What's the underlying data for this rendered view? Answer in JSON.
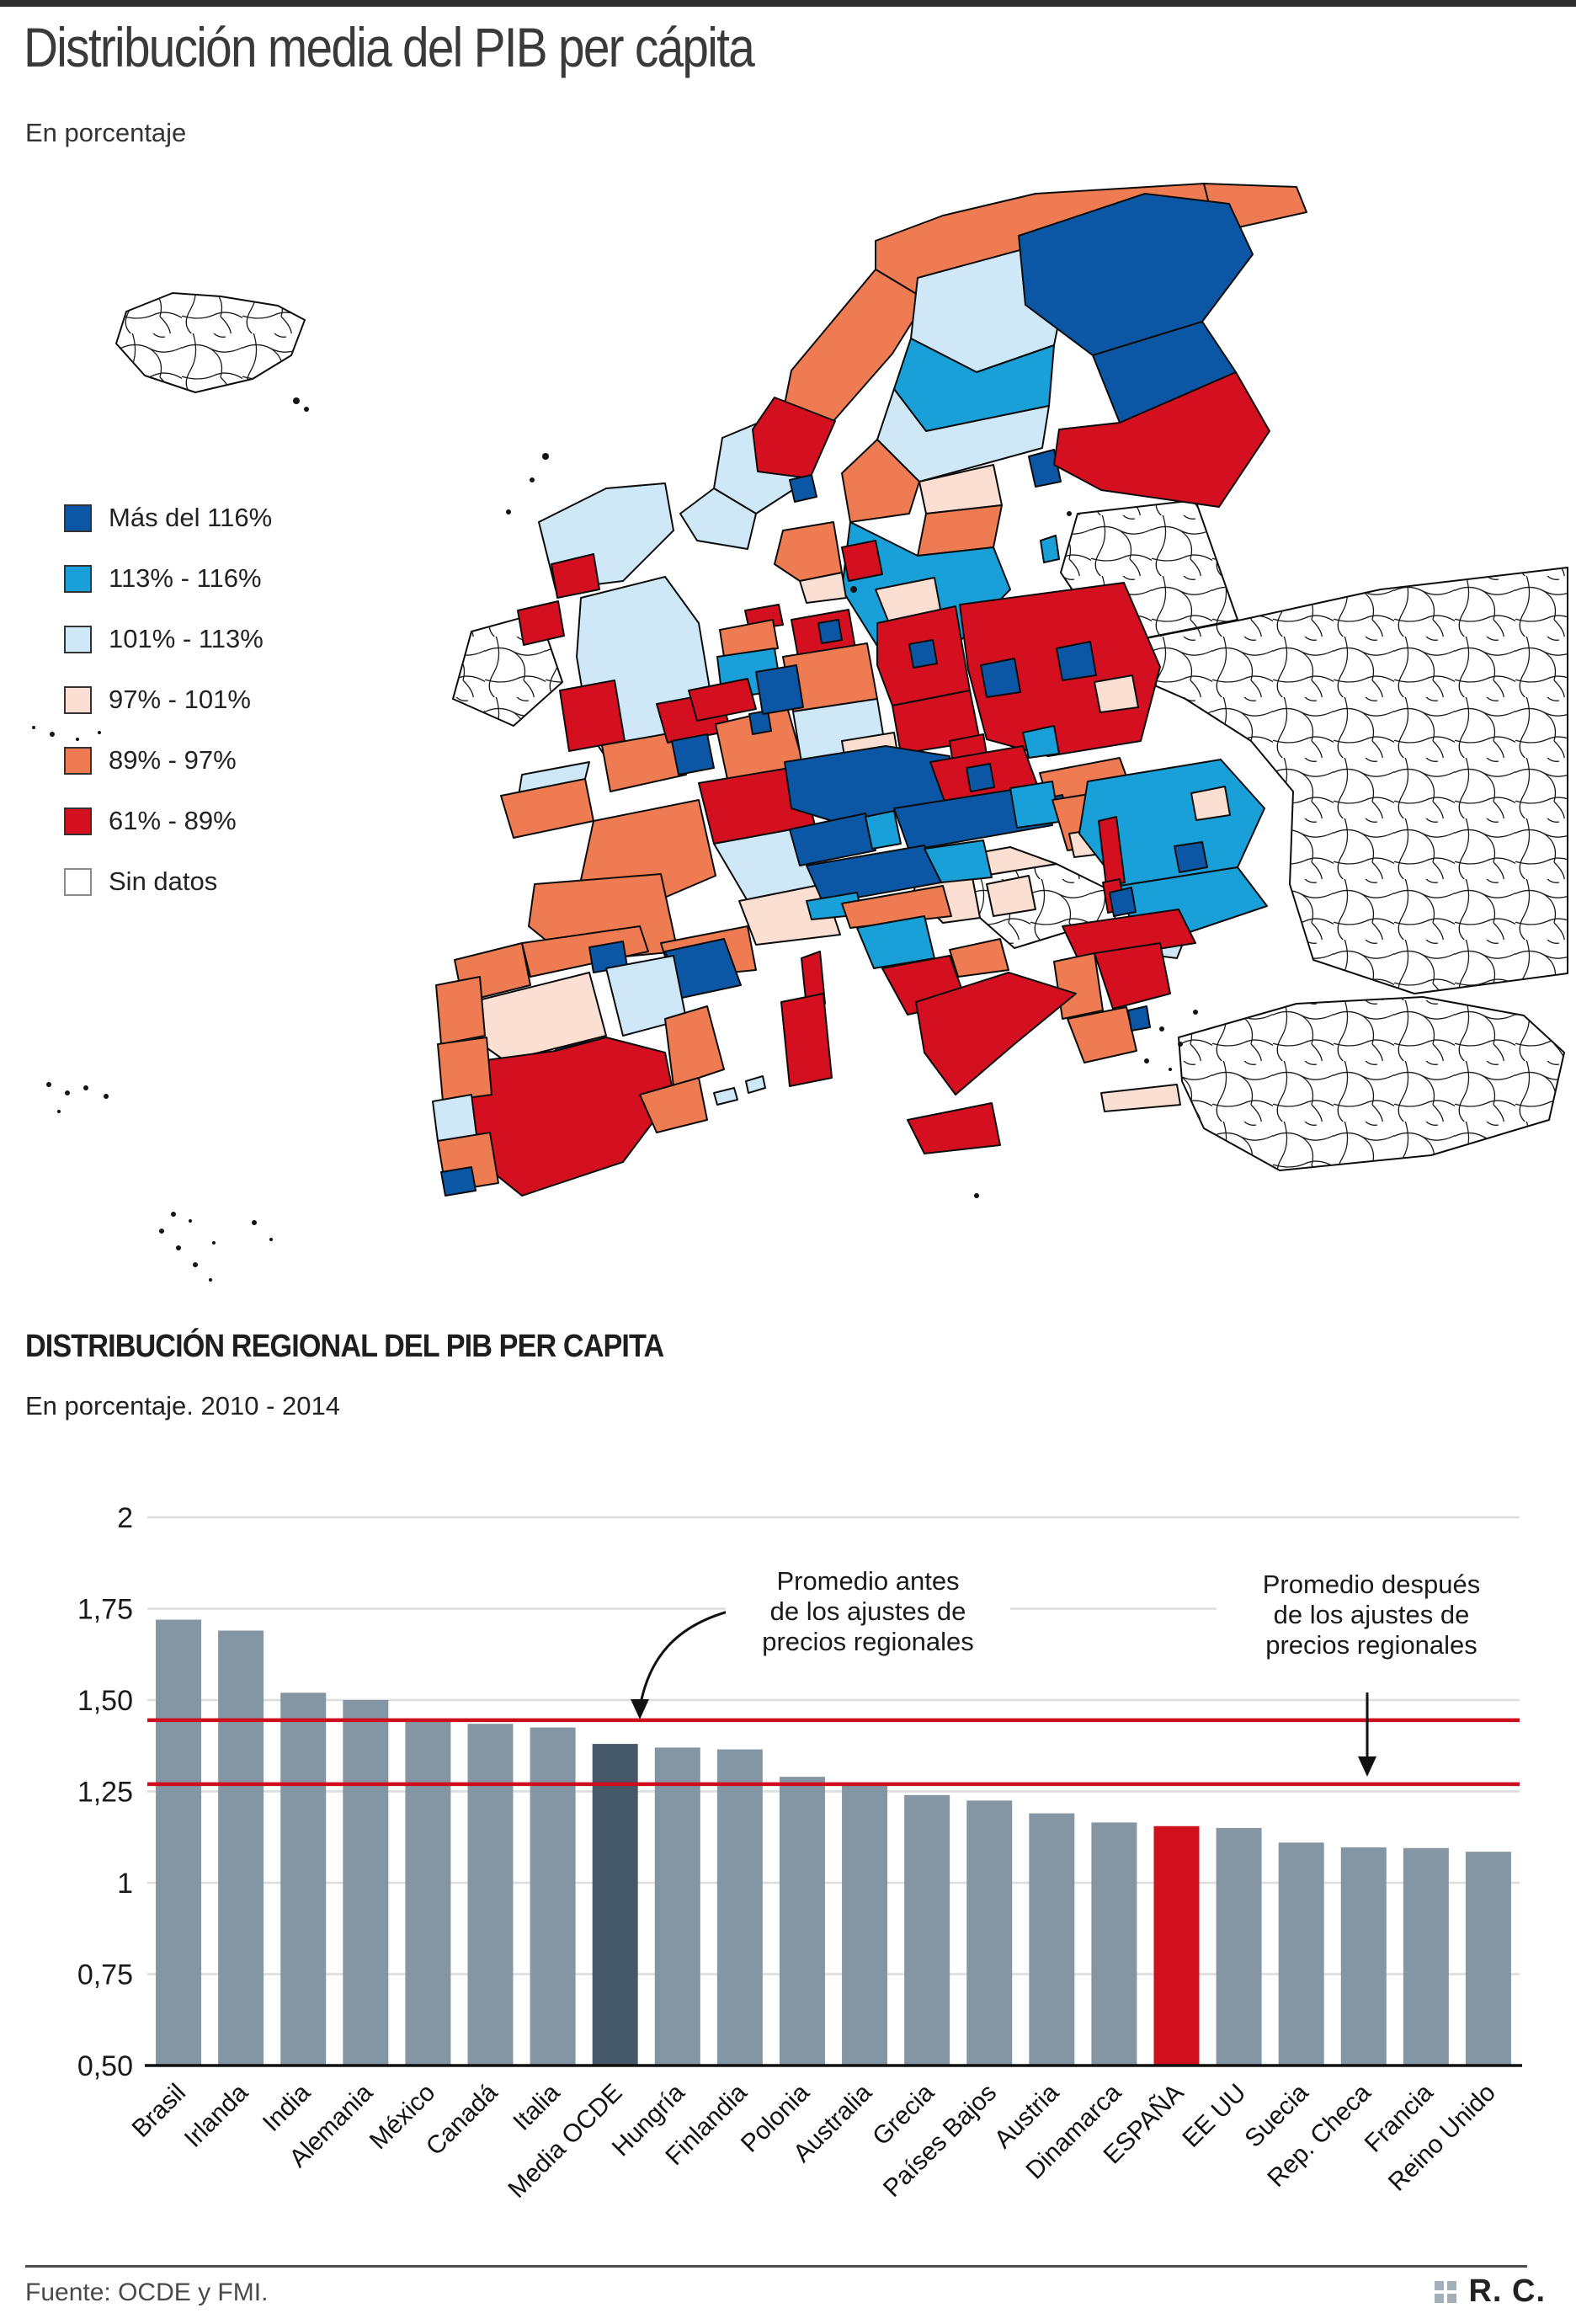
{
  "page": {
    "title": "Distribución media del PIB per cápita",
    "subtitle": "En porcentaje"
  },
  "map": {
    "legend": [
      {
        "key": "c1",
        "label": "Más del 116%",
        "color": "#0b57a6"
      },
      {
        "key": "c2",
        "label": "113% - 116%",
        "color": "#19a0d9"
      },
      {
        "key": "c3",
        "label": "101% - 113%",
        "color": "#cfe8f8"
      },
      {
        "key": "c4",
        "label": "97% - 101%",
        "color": "#fbdfd2"
      },
      {
        "key": "c5",
        "label": "89% - 97%",
        "color": "#ee7b52"
      },
      {
        "key": "c6",
        "label": "61% - 89%",
        "color": "#d40f1f"
      },
      {
        "key": "nodata",
        "label": "Sin datos",
        "color": "#ffffff"
      }
    ],
    "regions": [
      {
        "id": "iceland",
        "category": "nodata"
      },
      {
        "id": "ireland",
        "category": "nodata"
      },
      {
        "id": "baltics",
        "category": "nodata"
      },
      {
        "id": "east",
        "category": "nodata"
      },
      {
        "id": "turkey",
        "category": "nodata"
      },
      {
        "id": "balkans",
        "category": "nodata"
      },
      {
        "id": "nor_north",
        "category": "c5"
      },
      {
        "id": "kola",
        "category": "c5"
      },
      {
        "id": "nor_mid",
        "category": "c5"
      },
      {
        "id": "nor_west",
        "category": "c3"
      },
      {
        "id": "nor_red",
        "category": "c6"
      },
      {
        "id": "nor_south",
        "category": "c3"
      },
      {
        "id": "oslo",
        "category": "c1"
      },
      {
        "id": "swe_north",
        "category": "c3"
      },
      {
        "id": "swe_band",
        "category": "c2"
      },
      {
        "id": "swe_mid",
        "category": "c3"
      },
      {
        "id": "swe_or1",
        "category": "c5"
      },
      {
        "id": "swe_peach1",
        "category": "c4"
      },
      {
        "id": "swe_or2",
        "category": "c5"
      },
      {
        "id": "swe_south",
        "category": "c2"
      },
      {
        "id": "swe_peach2",
        "category": "c4"
      },
      {
        "id": "swe_tip",
        "category": "c4"
      },
      {
        "id": "stockholm",
        "category": "c1"
      },
      {
        "id": "gotland",
        "category": "c2"
      },
      {
        "id": "fin_north",
        "category": "c1"
      },
      {
        "id": "fin_mid",
        "category": "c1"
      },
      {
        "id": "fin_south",
        "category": "c6"
      },
      {
        "id": "den_jut",
        "category": "c5"
      },
      {
        "id": "den_red",
        "category": "c6"
      },
      {
        "id": "den_peach",
        "category": "c4"
      },
      {
        "id": "scotland",
        "category": "c3"
      },
      {
        "id": "scot_red",
        "category": "c6"
      },
      {
        "id": "england",
        "category": "c3"
      },
      {
        "id": "wales",
        "category": "c6"
      },
      {
        "id": "cornwall",
        "category": "c3"
      },
      {
        "id": "ni",
        "category": "c6"
      },
      {
        "id": "brittany",
        "category": "c5"
      },
      {
        "id": "normandy",
        "category": "c5"
      },
      {
        "id": "nord",
        "category": "c6"
      },
      {
        "id": "fr_east",
        "category": "c5"
      },
      {
        "id": "burgundy",
        "category": "c6"
      },
      {
        "id": "fr_center",
        "category": "c5"
      },
      {
        "id": "rhone",
        "category": "c3"
      },
      {
        "id": "provence",
        "category": "c4"
      },
      {
        "id": "fr_sw",
        "category": "c5"
      },
      {
        "id": "languedoc",
        "category": "c5"
      },
      {
        "id": "paris",
        "category": "c1"
      },
      {
        "id": "corsica",
        "category": "c6"
      },
      {
        "id": "nl_red",
        "category": "c6"
      },
      {
        "id": "nl_orange",
        "category": "c5"
      },
      {
        "id": "nl_cyan",
        "category": "c2"
      },
      {
        "id": "belgium",
        "category": "c6"
      },
      {
        "id": "lux",
        "category": "c1"
      },
      {
        "id": "ger_nw_red",
        "category": "c6"
      },
      {
        "id": "hamburg",
        "category": "c1"
      },
      {
        "id": "ger_lowsax",
        "category": "c5"
      },
      {
        "id": "ger_east_red",
        "category": "c6"
      },
      {
        "id": "berlin",
        "category": "c1"
      },
      {
        "id": "ger_center",
        "category": "c3"
      },
      {
        "id": "ger_peach",
        "category": "c4"
      },
      {
        "id": "ger_nrw",
        "category": "c1"
      },
      {
        "id": "ger_east2",
        "category": "c6"
      },
      {
        "id": "ger_south",
        "category": "c1"
      },
      {
        "id": "ger_se",
        "category": "c6"
      },
      {
        "id": "pl_red",
        "category": "c6"
      },
      {
        "id": "warsaw",
        "category": "c1"
      },
      {
        "id": "pl_west",
        "category": "c1"
      },
      {
        "id": "pl_peach",
        "category": "c4"
      },
      {
        "id": "pl_silesia",
        "category": "c2"
      },
      {
        "id": "cz_red",
        "category": "c6"
      },
      {
        "id": "prague",
        "category": "c1"
      },
      {
        "id": "sk_orange",
        "category": "c5"
      },
      {
        "id": "sk_blue",
        "category": "c1"
      },
      {
        "id": "at_dark",
        "category": "c1"
      },
      {
        "id": "at_cyan",
        "category": "c2"
      },
      {
        "id": "ch",
        "category": "c1"
      },
      {
        "id": "ch_e",
        "category": "c2"
      },
      {
        "id": "hu_orange",
        "category": "c5"
      },
      {
        "id": "budapest",
        "category": "c2"
      },
      {
        "id": "hu_red",
        "category": "c6"
      },
      {
        "id": "hu_peach",
        "category": "c4"
      },
      {
        "id": "slovenia",
        "category": "c2"
      },
      {
        "id": "croatia",
        "category": "c4"
      },
      {
        "id": "bosnia_peach",
        "category": "c4"
      },
      {
        "id": "ro_cyan",
        "category": "c2"
      },
      {
        "id": "ro_red",
        "category": "c6"
      },
      {
        "id": "ro_peach",
        "category": "c4"
      },
      {
        "id": "ro_buch",
        "category": "c1"
      },
      {
        "id": "bg_cyan",
        "category": "c2"
      },
      {
        "id": "bg_light",
        "category": "c3"
      },
      {
        "id": "bg_red",
        "category": "c6"
      },
      {
        "id": "sofia",
        "category": "c1"
      },
      {
        "id": "gr_north",
        "category": "c6"
      },
      {
        "id": "gr_epirus",
        "category": "c5"
      },
      {
        "id": "gr_center",
        "category": "c6"
      },
      {
        "id": "gr_pelo",
        "category": "c5"
      },
      {
        "id": "gr_athens",
        "category": "c1"
      },
      {
        "id": "crete",
        "category": "c4"
      },
      {
        "id": "it_north",
        "category": "c1"
      },
      {
        "id": "it_veneto",
        "category": "c2"
      },
      {
        "id": "it_liguria",
        "category": "c2"
      },
      {
        "id": "it_emilia",
        "category": "c5"
      },
      {
        "id": "it_tuscany",
        "category": "c2"
      },
      {
        "id": "it_lazio",
        "category": "c6"
      },
      {
        "id": "it_abruzzo",
        "category": "c5"
      },
      {
        "id": "it_south",
        "category": "c6"
      },
      {
        "id": "sicily",
        "category": "c6"
      },
      {
        "id": "sardinia",
        "category": "c6"
      },
      {
        "id": "galicia",
        "category": "c5"
      },
      {
        "id": "sp_north",
        "category": "c5"
      },
      {
        "id": "basque",
        "category": "c1"
      },
      {
        "id": "cyl_peach",
        "category": "c4"
      },
      {
        "id": "catalonia",
        "category": "c1"
      },
      {
        "id": "aragon",
        "category": "c3"
      },
      {
        "id": "madrid",
        "category": "c1"
      },
      {
        "id": "sp_red",
        "category": "c6"
      },
      {
        "id": "valencia",
        "category": "c5"
      },
      {
        "id": "murcia",
        "category": "c5"
      },
      {
        "id": "baleares1",
        "category": "c3"
      },
      {
        "id": "baleares2",
        "category": "c3"
      },
      {
        "id": "pt_north",
        "category": "c5"
      },
      {
        "id": "pt_center",
        "category": "c5"
      },
      {
        "id": "pt_lisbon",
        "category": "c3"
      },
      {
        "id": "pt_south",
        "category": "c5"
      },
      {
        "id": "pt_algarve",
        "category": "c1"
      }
    ]
  },
  "chart_data": {
    "type": "bar",
    "title": "DISTRIBUCIÓN REGIONAL DEL PIB PER CAPITA",
    "subtitle": "En porcentaje. 2010 - 2014",
    "categories": [
      "Brasil",
      "Irlanda",
      "India",
      "Alemania",
      "México",
      "Canadá",
      "Italia",
      "Media OCDE",
      "Hungría",
      "Finlandia",
      "Polonia",
      "Australia",
      "Grecia",
      "Países Bajos",
      "Austria",
      "Dinamarca",
      "ESPAÑA",
      "EE UU",
      "Suecia",
      "Rep. Checa",
      "Francia",
      "Reino Unido"
    ],
    "values": [
      1.72,
      1.69,
      1.52,
      1.5,
      1.44,
      1.435,
      1.425,
      1.38,
      1.37,
      1.365,
      1.29,
      1.265,
      1.24,
      1.225,
      1.19,
      1.165,
      1.155,
      1.15,
      1.11,
      1.097,
      1.095,
      1.085
    ],
    "default_bar_color": "#8496a4",
    "highlight_bars": {
      "Media OCDE": "#46596a",
      "ESPAÑA": "#d1101e"
    },
    "ylim": [
      0.5,
      2
    ],
    "grid": true,
    "yticks": [
      {
        "value": 2,
        "label": "2"
      },
      {
        "value": 1.75,
        "label": "1,75"
      },
      {
        "value": 1.5,
        "label": "1,50"
      },
      {
        "value": 1.25,
        "label": "1,25"
      },
      {
        "value": 1,
        "label": "1"
      },
      {
        "value": 0.75,
        "label": "0,75"
      },
      {
        "value": 0.5,
        "label": "0,50"
      }
    ],
    "reference_lines": [
      {
        "value": 1.445,
        "color": "#cc0e1d",
        "lines": [
          "Promedio antes",
          "de los ajustes de",
          "precios regionales"
        ]
      },
      {
        "value": 1.27,
        "color": "#cc0e1d",
        "lines": [
          "Promedio después",
          "de los ajustes de",
          "precios regionales"
        ]
      }
    ]
  },
  "footer": {
    "source": "Fuente: OCDE y FMI.",
    "credit": "R. C."
  }
}
